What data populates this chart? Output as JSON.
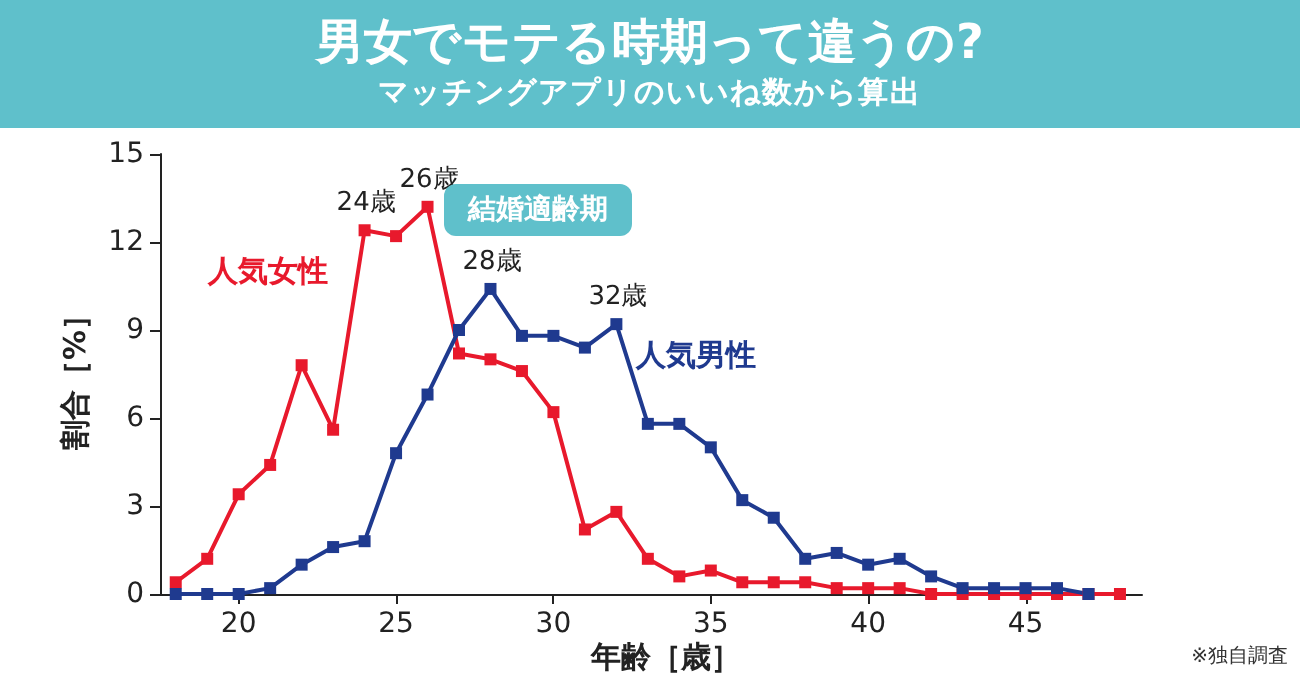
{
  "chart_data": {
    "type": "line",
    "title": "男女でモテる時期って違うの?",
    "subtitle": "マッチングアプリのいいね数から算出",
    "xlabel": "年齢［歳］",
    "ylabel": "割合［%］",
    "series": [
      {
        "name": "人気女性",
        "color": "#e8192c",
        "x": [
          18,
          19,
          20,
          21,
          22,
          23,
          24,
          25,
          26,
          27,
          28,
          29,
          30,
          31,
          32,
          33,
          34,
          35,
          36,
          37,
          38,
          39,
          40,
          41,
          42,
          43,
          44,
          45,
          46,
          47,
          48
        ],
        "values": [
          0.4,
          1.2,
          3.4,
          4.4,
          7.8,
          5.6,
          12.4,
          12.2,
          13.2,
          8.2,
          8.0,
          7.6,
          6.2,
          2.2,
          2.8,
          1.2,
          0.6,
          0.8,
          0.4,
          0.4,
          0.4,
          0.2,
          0.2,
          0.2,
          0,
          0,
          0,
          0,
          0,
          0,
          0
        ]
      },
      {
        "name": "人気男性",
        "color": "#1f3a8f",
        "x": [
          18,
          19,
          20,
          21,
          22,
          23,
          24,
          25,
          26,
          27,
          28,
          29,
          30,
          31,
          32,
          33,
          34,
          35,
          36,
          37,
          38,
          39,
          40,
          41,
          42,
          43,
          44,
          45,
          46,
          47
        ],
        "values": [
          0,
          0,
          0,
          0.2,
          1.0,
          1.6,
          1.8,
          4.8,
          6.8,
          9.0,
          10.4,
          8.8,
          8.8,
          8.4,
          9.2,
          5.8,
          5.8,
          5.0,
          3.2,
          2.6,
          1.2,
          1.4,
          1.0,
          1.2,
          0.6,
          0.2,
          0.2,
          0.2,
          0.2,
          0
        ]
      }
    ],
    "xlim": [
      17.5,
      48.7
    ],
    "xticks": [
      20,
      25,
      30,
      35,
      40,
      45
    ],
    "ylim": [
      0,
      15
    ],
    "yticks": [
      0,
      3,
      6,
      9,
      12,
      15
    ],
    "grid": false,
    "legend": false,
    "marker": "square",
    "line_style": "solid",
    "annotations": [
      {
        "text": "24歳",
        "x": 24,
        "y": 12.4
      },
      {
        "text": "26歳",
        "x": 26,
        "y": 13.2
      },
      {
        "text": "28歳",
        "x": 28,
        "y": 10.4
      },
      {
        "text": "32歳",
        "x": 32,
        "y": 9.2
      },
      "結婚適齢期",
      "※独自調査"
    ]
  }
}
